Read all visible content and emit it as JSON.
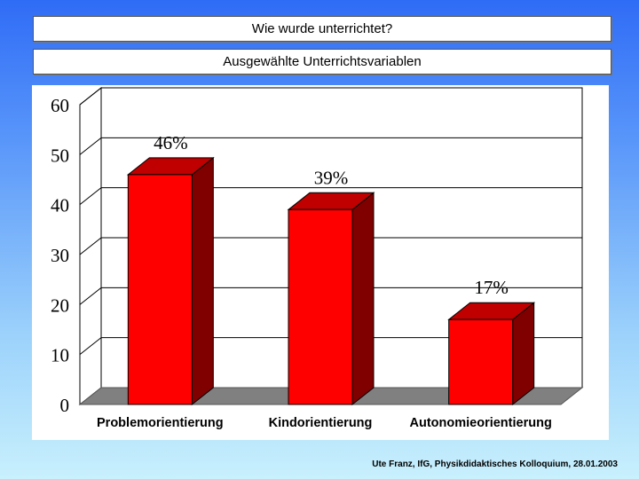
{
  "header": {
    "title": "Wie wurde unterrichtet?",
    "subtitle": "Ausgewählte Unterrichtsvariablen"
  },
  "footer": {
    "text": "Ute Franz, IfG, Physikdidaktisches Kolloquium, 28.01.2003"
  },
  "colors": {
    "bar_front": "#ff0000",
    "bar_top": "#c00000",
    "bar_side": "#800000",
    "floor": "#808080",
    "grid": "#000000"
  },
  "chart_data": {
    "type": "bar",
    "categories": [
      "Problemorientierung",
      "Kindorientierung",
      "Autonomieorientierung"
    ],
    "values": [
      46,
      39,
      17
    ],
    "data_labels": [
      "46%",
      "39%",
      "17%"
    ],
    "ylim": [
      0,
      60
    ],
    "yticks": [
      "0",
      "10",
      "20",
      "30",
      "40",
      "50",
      "60"
    ],
    "grid": true,
    "three_d": true
  }
}
